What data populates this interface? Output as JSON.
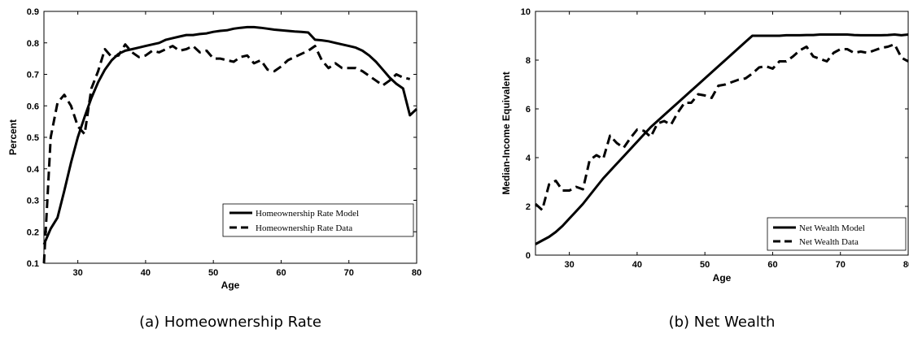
{
  "chart_data": [
    {
      "type": "line",
      "caption": "(a) Homeownership Rate",
      "xlabel": "Age",
      "ylabel": "Percent",
      "xlim": [
        25,
        80
      ],
      "ylim": [
        0.1,
        0.9
      ],
      "xticks": [
        "30",
        "40",
        "50",
        "60",
        "70",
        "80"
      ],
      "yticks": [
        "0.1",
        "0.2",
        "0.3",
        "0.4",
        "0.5",
        "0.6",
        "0.7",
        "0.8",
        "0.9"
      ],
      "legend_position": "bottom-right",
      "series": [
        {
          "name": "Homeownership Rate Model",
          "style": "solid",
          "x": [
            25,
            26,
            27,
            28,
            29,
            30,
            31,
            32,
            33,
            34,
            35,
            36,
            37,
            38,
            39,
            40,
            41,
            42,
            43,
            44,
            45,
            46,
            47,
            48,
            49,
            50,
            51,
            52,
            53,
            54,
            55,
            56,
            57,
            58,
            59,
            60,
            61,
            62,
            63,
            64,
            65,
            66,
            67,
            68,
            69,
            70,
            71,
            72,
            73,
            74,
            75,
            76,
            77,
            78,
            79,
            80
          ],
          "y": [
            0.16,
            0.21,
            0.245,
            0.33,
            0.42,
            0.5,
            0.565,
            0.625,
            0.675,
            0.715,
            0.745,
            0.765,
            0.775,
            0.78,
            0.785,
            0.79,
            0.795,
            0.8,
            0.81,
            0.815,
            0.82,
            0.825,
            0.825,
            0.828,
            0.83,
            0.835,
            0.838,
            0.84,
            0.845,
            0.848,
            0.85,
            0.85,
            0.848,
            0.845,
            0.842,
            0.84,
            0.838,
            0.836,
            0.835,
            0.833,
            0.81,
            0.808,
            0.805,
            0.8,
            0.795,
            0.79,
            0.785,
            0.775,
            0.76,
            0.74,
            0.715,
            0.69,
            0.67,
            0.655,
            0.57,
            0.59
          ]
        },
        {
          "name": "Homeownership Rate Data",
          "style": "dashed",
          "x": [
            25,
            25.5,
            26,
            27,
            28,
            29,
            30,
            31,
            32,
            33,
            34,
            35,
            36,
            37,
            38,
            39,
            40,
            41,
            42,
            43,
            44,
            45,
            46,
            47,
            48,
            49,
            50,
            51,
            52,
            53,
            54,
            55,
            56,
            57,
            58,
            59,
            60,
            61,
            62,
            63,
            64,
            65,
            66,
            67,
            68,
            69,
            70,
            71,
            72,
            73,
            74,
            75,
            76,
            77,
            78,
            79
          ],
          "y": [
            0.1,
            0.3,
            0.5,
            0.61,
            0.635,
            0.6,
            0.535,
            0.51,
            0.655,
            0.71,
            0.78,
            0.755,
            0.76,
            0.795,
            0.77,
            0.755,
            0.76,
            0.775,
            0.77,
            0.78,
            0.79,
            0.775,
            0.78,
            0.79,
            0.77,
            0.775,
            0.75,
            0.75,
            0.745,
            0.74,
            0.755,
            0.76,
            0.735,
            0.745,
            0.715,
            0.71,
            0.725,
            0.745,
            0.755,
            0.765,
            0.775,
            0.79,
            0.745,
            0.72,
            0.735,
            0.72,
            0.72,
            0.72,
            0.71,
            0.695,
            0.68,
            0.665,
            0.68,
            0.7,
            0.69,
            0.685
          ]
        }
      ]
    },
    {
      "type": "line",
      "caption": "(b) Net Wealth",
      "xlabel": "Age",
      "ylabel": "Median-Income Equivalent",
      "xlim": [
        25,
        80
      ],
      "ylim": [
        0,
        10
      ],
      "xticks": [
        "30",
        "40",
        "50",
        "60",
        "70",
        "80"
      ],
      "yticks": [
        "0",
        "2",
        "4",
        "6",
        "8",
        "10"
      ],
      "legend_position": "bottom-right",
      "series": [
        {
          "name": "Net Wealth Model",
          "style": "solid",
          "x": [
            25,
            26,
            27,
            28,
            29,
            30,
            31,
            32,
            33,
            34,
            35,
            36,
            37,
            38,
            39,
            40,
            41,
            42,
            43,
            44,
            45,
            46,
            47,
            48,
            49,
            50,
            51,
            52,
            53,
            54,
            55,
            56,
            57,
            58,
            59,
            60,
            61,
            62,
            63,
            64,
            65,
            66,
            67,
            68,
            69,
            70,
            71,
            72,
            73,
            74,
            75,
            76,
            77,
            78,
            79,
            80
          ],
          "y": [
            0.45,
            0.6,
            0.75,
            0.95,
            1.2,
            1.5,
            1.8,
            2.1,
            2.45,
            2.8,
            3.15,
            3.45,
            3.75,
            4.05,
            4.35,
            4.65,
            4.95,
            5.25,
            5.5,
            5.75,
            6.0,
            6.25,
            6.5,
            6.75,
            7.0,
            7.25,
            7.5,
            7.75,
            8.0,
            8.25,
            8.5,
            8.75,
            9.0,
            9.0,
            9.0,
            9.0,
            9.0,
            9.02,
            9.02,
            9.02,
            9.03,
            9.03,
            9.05,
            9.05,
            9.05,
            9.05,
            9.05,
            9.03,
            9.02,
            9.02,
            9.02,
            9.02,
            9.03,
            9.05,
            9.02,
            9.05
          ]
        },
        {
          "name": "Net Wealth Data",
          "style": "dashed",
          "x": [
            25,
            26,
            27,
            28,
            29,
            30,
            31,
            32,
            33,
            34,
            35,
            36,
            37,
            38,
            39,
            40,
            41,
            42,
            43,
            44,
            45,
            46,
            47,
            48,
            49,
            50,
            51,
            52,
            53,
            54,
            55,
            56,
            57,
            58,
            59,
            60,
            61,
            62,
            63,
            64,
            65,
            66,
            67,
            68,
            69,
            70,
            71,
            72,
            73,
            74,
            75,
            76,
            77,
            78,
            79,
            80
          ],
          "y": [
            2.1,
            1.85,
            2.9,
            3.05,
            2.65,
            2.65,
            2.8,
            2.7,
            3.9,
            4.1,
            3.95,
            4.9,
            4.6,
            4.4,
            4.8,
            5.15,
            5.1,
            4.85,
            5.4,
            5.5,
            5.35,
            5.85,
            6.25,
            6.25,
            6.6,
            6.55,
            6.45,
            6.95,
            7.0,
            7.1,
            7.2,
            7.25,
            7.45,
            7.7,
            7.75,
            7.65,
            7.95,
            7.95,
            8.15,
            8.4,
            8.55,
            8.15,
            8.05,
            7.95,
            8.3,
            8.45,
            8.45,
            8.3,
            8.35,
            8.3,
            8.4,
            8.5,
            8.55,
            8.65,
            8.1,
            7.95
          ]
        }
      ]
    }
  ]
}
